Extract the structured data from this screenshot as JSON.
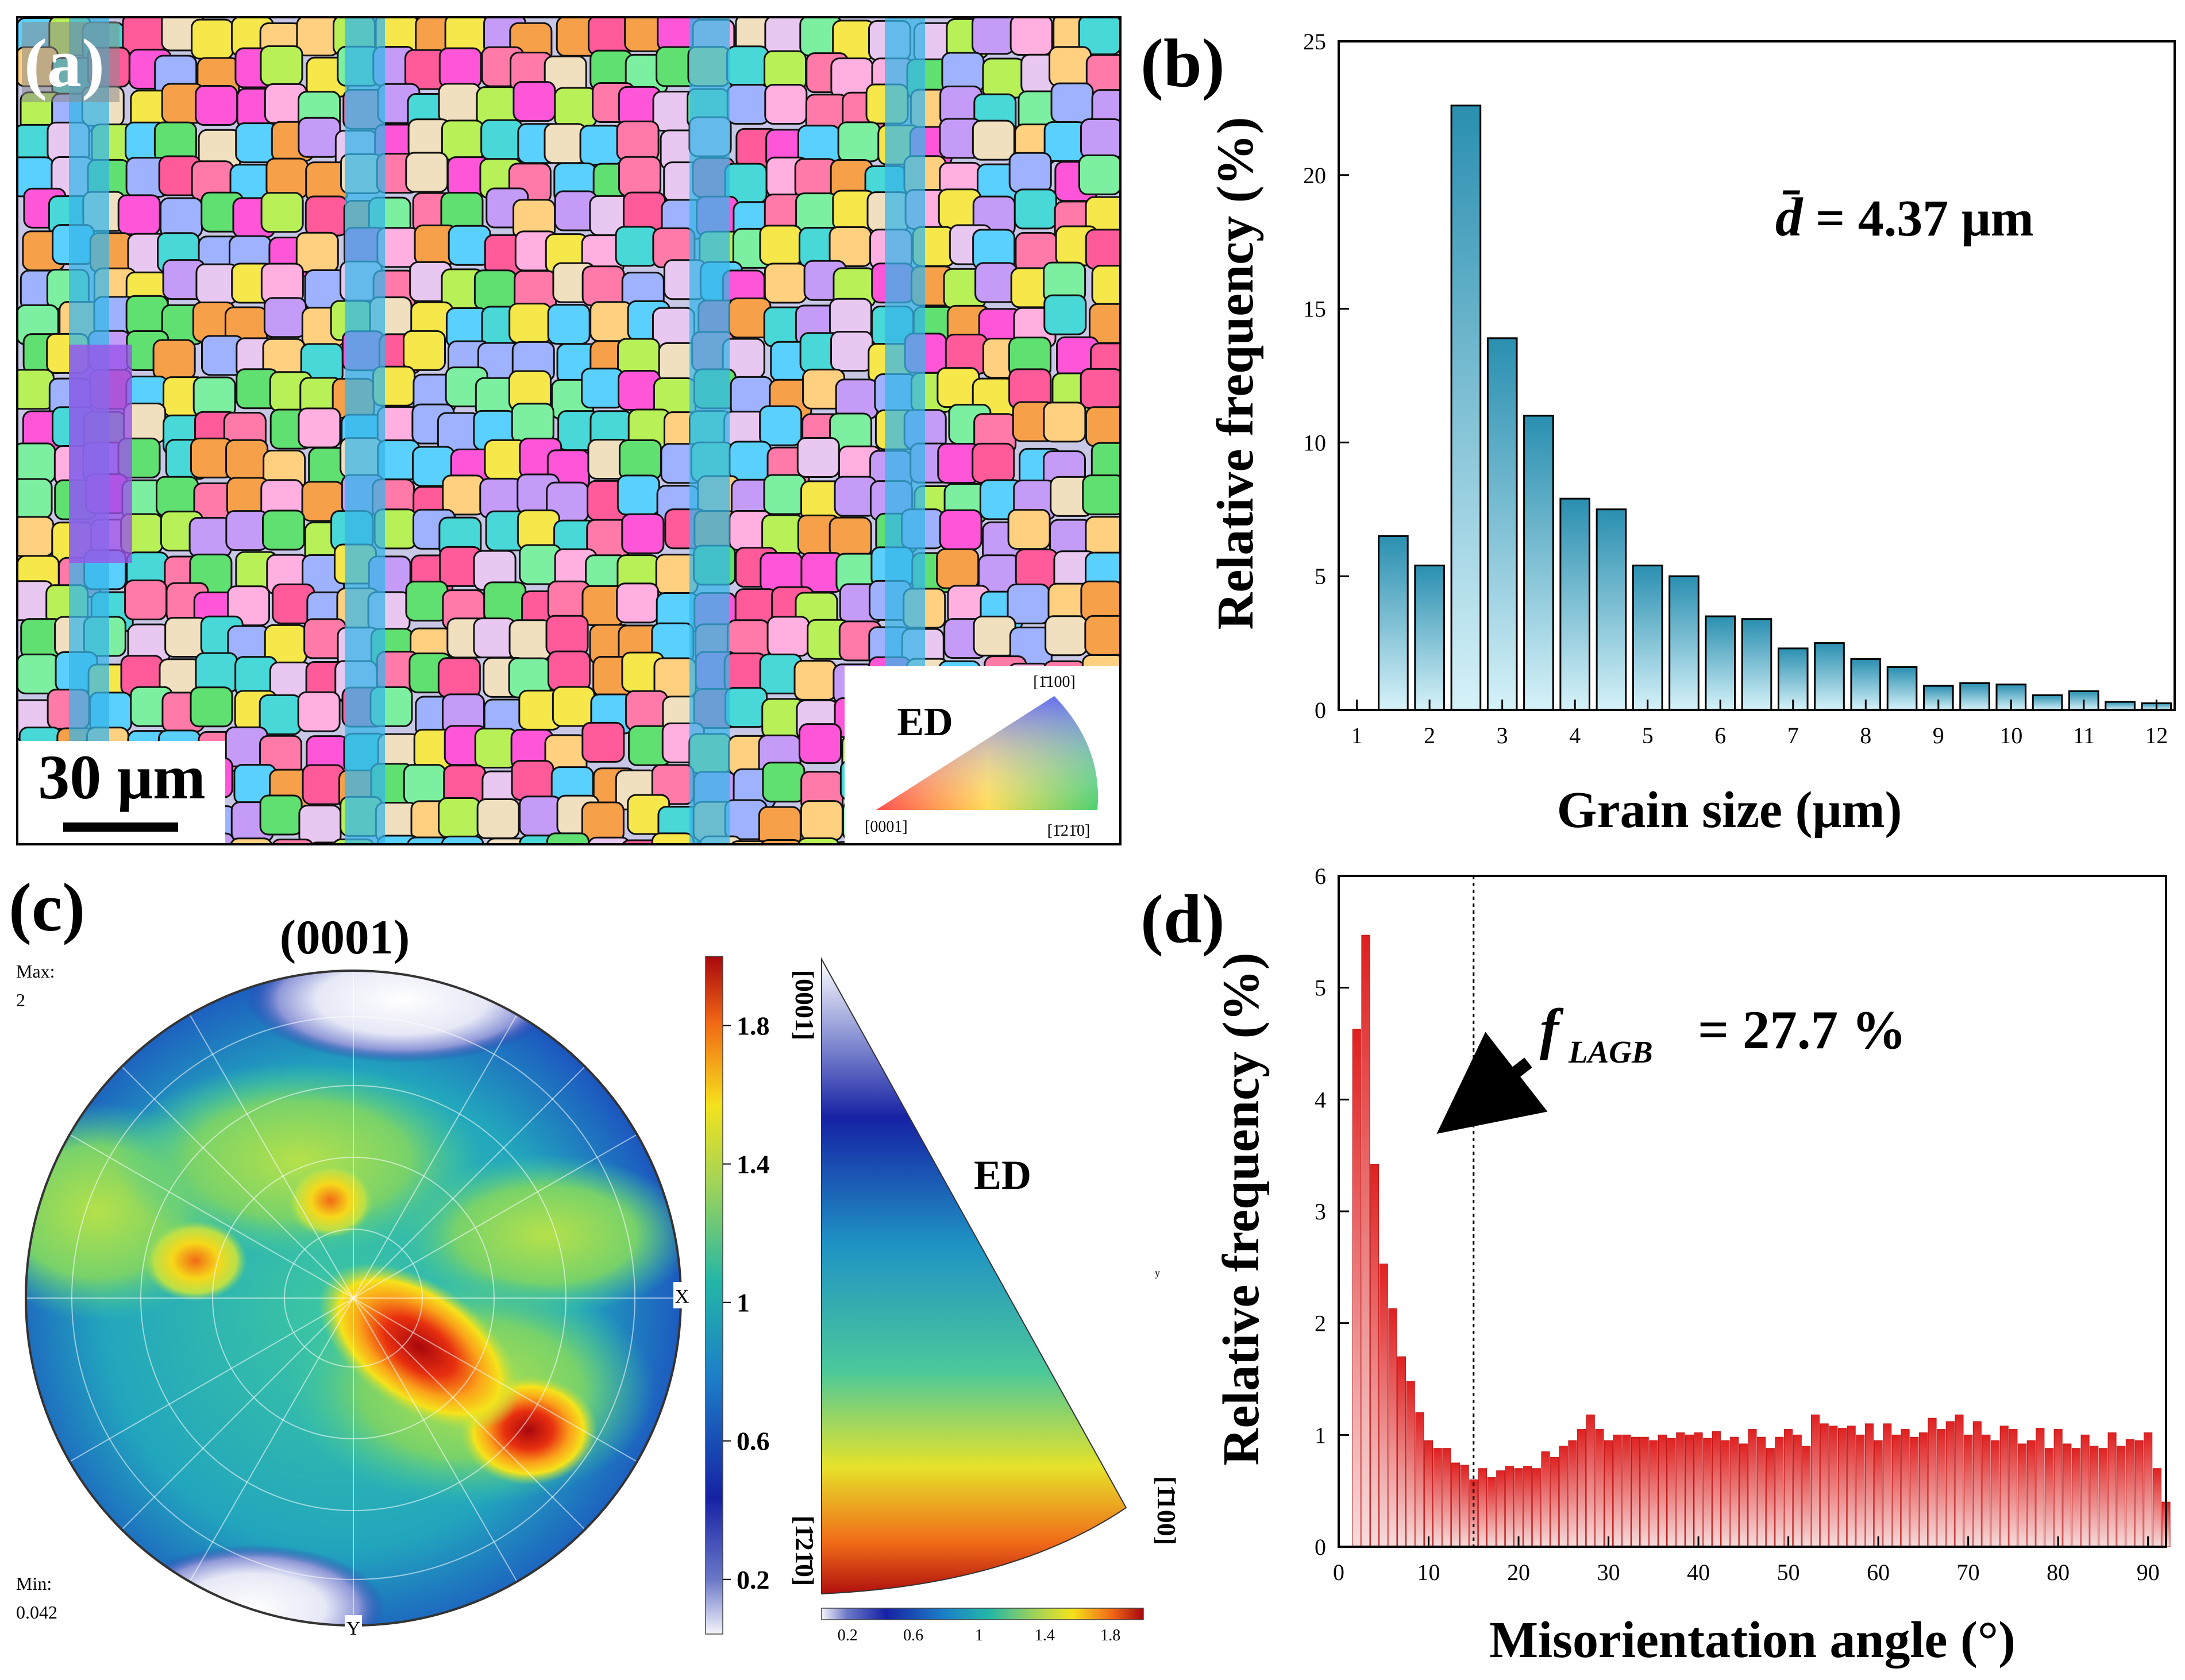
{
  "panels": {
    "a": {
      "label": "(a)",
      "scale_bar": "30 μm",
      "ipf_key": {
        "label": "ED",
        "corner_0001": "[0001]",
        "corner_m1100": "[1̄100]",
        "corner_m12m10": "[1̄21̄0]"
      }
    },
    "b": {
      "label": "(b)",
      "annotation_prefix": "d̄",
      "annotation_value": "= 4.37 μm"
    },
    "c": {
      "label": "(c)",
      "title": "(0001)",
      "max_label": "Max:",
      "max_value": "2",
      "min_label": "Min:",
      "min_value": "0.042",
      "axis_x": "X",
      "axis_y": "Y",
      "colorbar_ticks": [
        "1.8",
        "1.4",
        "1",
        "0.6",
        "0.2"
      ],
      "ipf_label": "ED",
      "ipf_top_dir": "[0001]",
      "ipf_bottom_dir": "[1̄21̄0]",
      "ipf_right_dir": "[1̄100]",
      "ipf_small_mark": "y",
      "hbar_ticks": [
        "0.2",
        "0.6",
        "1",
        "1.4",
        "1.8"
      ]
    },
    "d": {
      "label": "(d)",
      "annotation_f": "f",
      "annotation_sub": "LAGB",
      "annotation_value": "= 27.7 %"
    }
  },
  "colors": {
    "hist_b_top": "#2a8fb0",
    "hist_b_bottom": "#d6f2f9",
    "hist_d_top": "#e02020",
    "hist_d_bottom": "#f6dcdc"
  },
  "chart_data": [
    {
      "type": "bar",
      "xlabel": "Grain size (μm)",
      "ylabel": "Relative frequency (%)",
      "xlim": [
        0.75,
        12.25
      ],
      "ylim": [
        0,
        25
      ],
      "xticks": [
        1,
        2,
        3,
        4,
        5,
        6,
        7,
        8,
        9,
        10,
        11,
        12
      ],
      "yticks": [
        0,
        5,
        10,
        15,
        20,
        25
      ],
      "x": [
        1.5,
        2.0,
        2.5,
        3.0,
        3.5,
        4.0,
        4.5,
        5.0,
        5.5,
        6.0,
        6.5,
        7.0,
        7.5,
        8.0,
        8.5,
        9.0,
        9.5,
        10.0,
        10.5,
        11.0,
        11.5,
        12.0
      ],
      "values": [
        6.5,
        5.4,
        22.6,
        13.9,
        11.0,
        7.9,
        7.5,
        5.4,
        5.0,
        3.5,
        3.4,
        2.3,
        2.5,
        1.9,
        1.6,
        0.9,
        1.0,
        0.95,
        0.55,
        0.7,
        0.3,
        0.25
      ]
    },
    {
      "type": "bar",
      "xlabel": "Misorientation angle (°)",
      "ylabel": "Relative frequency (%)",
      "xlim": [
        0,
        92
      ],
      "ylim": [
        0,
        6
      ],
      "xticks": [
        0,
        10,
        20,
        30,
        40,
        50,
        60,
        70,
        80,
        90
      ],
      "yticks": [
        0,
        1,
        2,
        3,
        4,
        5,
        6
      ],
      "threshold_line_x": 15,
      "bin_width": 1,
      "x": [
        2,
        3,
        4,
        5,
        6,
        7,
        8,
        9,
        10,
        11,
        12,
        13,
        14,
        15,
        16,
        17,
        18,
        19,
        20,
        21,
        22,
        23,
        24,
        25,
        26,
        27,
        28,
        29,
        30,
        31,
        32,
        33,
        34,
        35,
        36,
        37,
        38,
        39,
        40,
        41,
        42,
        43,
        44,
        45,
        46,
        47,
        48,
        49,
        50,
        51,
        52,
        53,
        54,
        55,
        56,
        57,
        58,
        59,
        60,
        61,
        62,
        63,
        64,
        65,
        66,
        67,
        68,
        69,
        70,
        71,
        72,
        73,
        74,
        75,
        76,
        77,
        78,
        79,
        80,
        81,
        82,
        83,
        84,
        85,
        86,
        87,
        88,
        89,
        90,
        91,
        92
      ],
      "values": [
        4.63,
        5.47,
        3.42,
        2.53,
        2.13,
        1.7,
        1.48,
        1.2,
        0.95,
        0.88,
        0.88,
        0.75,
        0.73,
        0.6,
        0.7,
        0.62,
        0.68,
        0.72,
        0.7,
        0.72,
        0.7,
        0.85,
        0.8,
        0.9,
        0.95,
        1.05,
        1.18,
        1.05,
        0.95,
        1.0,
        1.0,
        0.98,
        0.98,
        0.95,
        1.0,
        0.97,
        1.02,
        1.0,
        1.02,
        0.97,
        1.03,
        0.95,
        0.98,
        0.92,
        1.05,
        0.98,
        0.88,
        0.98,
        1.05,
        1.0,
        0.9,
        1.18,
        1.1,
        1.08,
        1.06,
        1.08,
        1.0,
        1.1,
        0.95,
        1.1,
        1.0,
        1.05,
        0.98,
        1.02,
        1.15,
        1.05,
        1.12,
        1.18,
        1.0,
        1.12,
        1.0,
        0.95,
        1.08,
        1.05,
        0.92,
        0.95,
        1.06,
        0.88,
        1.05,
        0.92,
        0.88,
        1.0,
        0.9,
        0.88,
        1.02,
        0.9,
        0.96,
        0.95,
        1.02,
        0.7,
        0.4
      ]
    }
  ]
}
